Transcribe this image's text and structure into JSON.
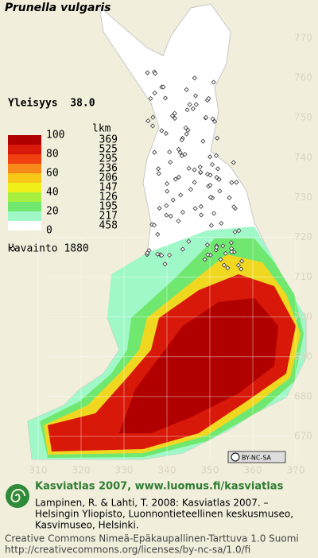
{
  "title": "Prunella vulgaris",
  "frequency": "Yleisyys  38.0",
  "legend": {
    "count_header": "lkm",
    "ticks": [
      "100",
      "80",
      "60",
      "40",
      "20",
      "0"
    ],
    "rows": [
      {
        "color": "#b00000",
        "count": "369"
      },
      {
        "color": "#d81808",
        "count": "525"
      },
      {
        "color": "#f04010",
        "count": "295"
      },
      {
        "color": "#f88818",
        "count": "236"
      },
      {
        "color": "#f8c818",
        "count": "206"
      },
      {
        "color": "#f0f018",
        "count": "147"
      },
      {
        "color": "#a8f040",
        "count": "126"
      },
      {
        "color": "#70e870",
        "count": "195"
      },
      {
        "color": "#a0f8c8",
        "count": "217"
      },
      {
        "color": "#ffffff",
        "count": "458"
      }
    ]
  },
  "observations": "Havainto 1880",
  "grid": {
    "y_labels": [
      "770",
      "760",
      "750",
      "740",
      "730",
      "720",
      "710",
      "700",
      "690",
      "680",
      "670"
    ],
    "x_labels": [
      "310",
      "320",
      "330",
      "340",
      "350",
      "360",
      "370"
    ]
  },
  "license_badge": "BY-NC-SA",
  "footer": {
    "heading": "Kasviatlas 2007, www.luomus.fi/kasviatlas",
    "citation": [
      "Lampinen, R. & Lahti, T. 2008: Kasviatlas 2007. –",
      "Helsingin Yliopisto, Luonnontieteellinen keskusmuseo,",
      "Kasvimuseo, Helsinki."
    ],
    "license": [
      "Creative Commons Nimeä-Epäkaupallinen-Tarttuva 1.0 Suomi",
      "http://creativecommons.org/licenses/by-nc-sa/1.0/fi"
    ]
  }
}
